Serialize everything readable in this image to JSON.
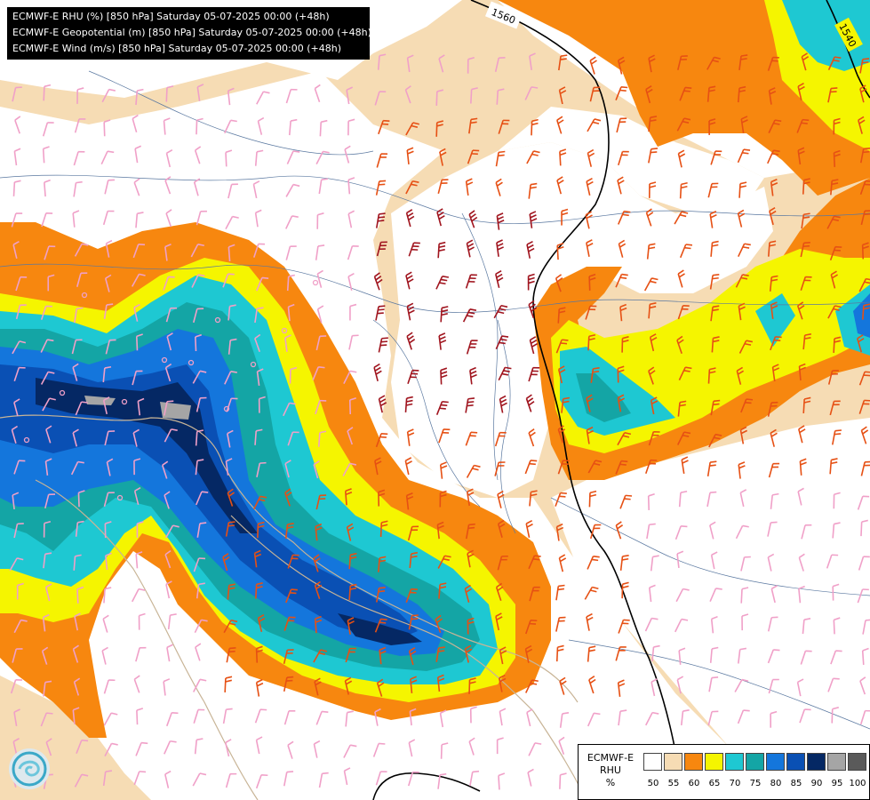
{
  "header": {
    "lines": [
      "ECMWF-E RHU (%) [850 hPa] Saturday 05-07-2025 00:00 (+48h)",
      "ECMWF-E Geopotential (m) [850 hPa] Saturday 05-07-2025 00:00 (+48h)",
      "ECMWF-E Wind (m/s) [850 hPa] Saturday 05-07-2025 00:00 (+48h)"
    ]
  },
  "contours": {
    "labels": [
      "1560",
      "1540"
    ]
  },
  "legend": {
    "model": "ECMWF-E",
    "field": "RHU",
    "unit": "%",
    "ticks": [
      "50",
      "55",
      "60",
      "65",
      "70",
      "75",
      "80",
      "85",
      "90",
      "95",
      "100"
    ],
    "colors": [
      "#ffffff",
      "#f6dcb4",
      "#f7870f",
      "#f5f500",
      "#1ec8d2",
      "#14a5a5",
      "#1476dc",
      "#0a50b4",
      "#052864",
      "#a5a5a5",
      "#5a5a5a"
    ]
  },
  "palette": {
    "white": "#ffffff",
    "tan": "#f6dcb4",
    "orange": "#f7870f",
    "yellow": "#f5f500",
    "cyan": "#1ec8d2",
    "teal": "#14a5a5",
    "blue": "#1476dc",
    "mid-blue": "#0a50b4",
    "navy": "#052864",
    "grey": "#a5a5a5",
    "dark-grey": "#5a5a5a",
    "wind-low": "#f0a0c8",
    "wind-mid": "#e65014",
    "wind-high": "#a0141e"
  },
  "logo_icon": "ecmwf-logo-icon"
}
